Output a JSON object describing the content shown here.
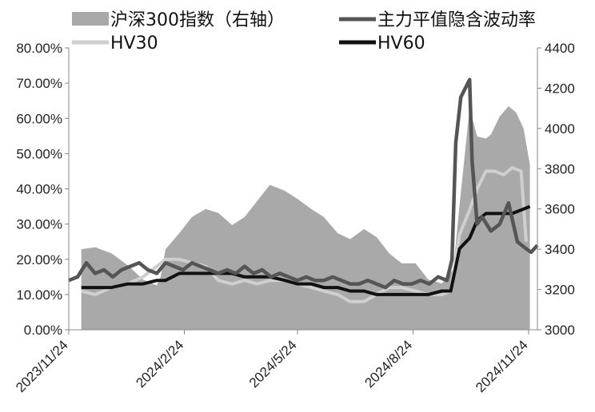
{
  "chart_data": {
    "type": "line",
    "legend": {
      "placement": "top",
      "entries": [
        {
          "label": "沪深300指数（右轴）",
          "kind": "area",
          "color": "#a9a9a9"
        },
        {
          "label": "主力平值隐含波动率",
          "kind": "line",
          "color": "#555555"
        },
        {
          "label": "HV30",
          "kind": "line",
          "color": "#cfcfcf"
        },
        {
          "label": "HV60",
          "kind": "line",
          "color": "#111111"
        }
      ]
    },
    "x_axis": {
      "ticks": [
        "2023/11/24",
        "2024/2/24",
        "2024/5/24",
        "2024/8/24",
        "2024/11/24"
      ],
      "start": "2023/11/24",
      "end": "2024/12/1"
    },
    "y_left": {
      "min": 0,
      "max": 0.8,
      "ticks": [
        "0.00%",
        "10.00%",
        "20.00%",
        "30.00%",
        "40.00%",
        "50.00%",
        "60.00%",
        "70.00%",
        "80.00%"
      ]
    },
    "y_right": {
      "min": 3000,
      "max": 4400,
      "ticks": [
        "3000",
        "3200",
        "3400",
        "3600",
        "3800",
        "4000",
        "4200",
        "4400"
      ]
    },
    "grid": false,
    "series": [
      {
        "name": "沪深300指数（右轴）",
        "axis": "right",
        "style": "area",
        "x": [
          "2023/12/4",
          "2023/12/15",
          "2023/12/28",
          "2024/1/10",
          "2024/1/22",
          "2024/2/2",
          "2024/2/5",
          "2024/2/9",
          "2024/2/20",
          "2024/3/1",
          "2024/3/12",
          "2024/3/22",
          "2024/4/2",
          "2024/4/12",
          "2024/4/22",
          "2024/5/2",
          "2024/5/14",
          "2024/5/24",
          "2024/6/4",
          "2024/6/14",
          "2024/6/25",
          "2024/7/5",
          "2024/7/16",
          "2024/7/26",
          "2024/8/5",
          "2024/8/15",
          "2024/8/26",
          "2024/9/5",
          "2024/9/16",
          "2024/9/25",
          "2024/10/1",
          "2024/10/8",
          "2024/10/14",
          "2024/10/21",
          "2024/10/25",
          "2024/11/1",
          "2024/11/8",
          "2024/11/14",
          "2024/11/20",
          "2024/11/25"
        ],
        "values": [
          3400,
          3410,
          3380,
          3320,
          3250,
          3220,
          3260,
          3400,
          3480,
          3560,
          3600,
          3580,
          3520,
          3560,
          3640,
          3720,
          3690,
          3650,
          3600,
          3560,
          3480,
          3450,
          3500,
          3460,
          3380,
          3330,
          3330,
          3250,
          3230,
          3300,
          3680,
          4100,
          3960,
          3950,
          3970,
          4060,
          4110,
          4080,
          4000,
          3820
        ]
      },
      {
        "name": "主力平值隐含波动率",
        "axis": "left",
        "x": [
          "2023/11/24",
          "2023/12/1",
          "2023/12/8",
          "2023/12/15",
          "2023/12/22",
          "2023/12/29",
          "2024/1/5",
          "2024/1/12",
          "2024/1/19",
          "2024/1/26",
          "2024/2/2",
          "2024/2/9",
          "2024/2/16",
          "2024/2/23",
          "2024/3/1",
          "2024/3/8",
          "2024/3/15",
          "2024/3/22",
          "2024/3/29",
          "2024/4/5",
          "2024/4/12",
          "2024/4/19",
          "2024/4/26",
          "2024/5/3",
          "2024/5/10",
          "2024/5/17",
          "2024/5/24",
          "2024/5/31",
          "2024/6/7",
          "2024/6/14",
          "2024/6/21",
          "2024/6/28",
          "2024/7/5",
          "2024/7/12",
          "2024/7/19",
          "2024/7/26",
          "2024/8/2",
          "2024/8/9",
          "2024/8/16",
          "2024/8/23",
          "2024/8/30",
          "2024/9/6",
          "2024/9/13",
          "2024/9/20",
          "2024/9/24",
          "2024/9/27",
          "2024/10/1",
          "2024/10/8",
          "2024/10/10",
          "2024/10/14",
          "2024/10/18",
          "2024/10/25",
          "2024/11/1",
          "2024/11/8",
          "2024/11/15",
          "2024/11/22",
          "2024/11/26",
          "2024/12/1"
        ],
        "values": [
          0.14,
          0.15,
          0.19,
          0.16,
          0.17,
          0.15,
          0.17,
          0.18,
          0.19,
          0.17,
          0.16,
          0.19,
          0.18,
          0.17,
          0.19,
          0.18,
          0.17,
          0.16,
          0.17,
          0.16,
          0.18,
          0.16,
          0.17,
          0.15,
          0.16,
          0.15,
          0.14,
          0.15,
          0.14,
          0.14,
          0.15,
          0.14,
          0.13,
          0.13,
          0.14,
          0.13,
          0.12,
          0.14,
          0.13,
          0.13,
          0.14,
          0.13,
          0.15,
          0.14,
          0.2,
          0.53,
          0.66,
          0.71,
          0.48,
          0.3,
          0.32,
          0.28,
          0.3,
          0.36,
          0.25,
          0.23,
          0.22,
          0.24
        ]
      },
      {
        "name": "HV30",
        "axis": "left",
        "x": [
          "2023/12/4",
          "2023/12/15",
          "2023/12/28",
          "2024/1/10",
          "2024/1/22",
          "2024/2/2",
          "2024/2/9",
          "2024/2/20",
          "2024/3/1",
          "2024/3/12",
          "2024/3/22",
          "2024/4/2",
          "2024/4/12",
          "2024/4/22",
          "2024/5/2",
          "2024/5/14",
          "2024/5/24",
          "2024/6/4",
          "2024/6/14",
          "2024/6/25",
          "2024/7/5",
          "2024/7/16",
          "2024/7/26",
          "2024/8/5",
          "2024/8/15",
          "2024/8/26",
          "2024/9/5",
          "2024/9/16",
          "2024/9/23",
          "2024/9/30",
          "2024/10/8",
          "2024/10/14",
          "2024/10/21",
          "2024/10/28",
          "2024/11/4",
          "2024/11/11",
          "2024/11/18",
          "2024/11/22"
        ],
        "values": [
          0.11,
          0.1,
          0.12,
          0.13,
          0.15,
          0.18,
          0.2,
          0.2,
          0.19,
          0.18,
          0.14,
          0.13,
          0.14,
          0.13,
          0.14,
          0.14,
          0.13,
          0.12,
          0.11,
          0.1,
          0.08,
          0.08,
          0.1,
          0.12,
          0.12,
          0.11,
          0.1,
          0.1,
          0.11,
          0.27,
          0.34,
          0.4,
          0.45,
          0.45,
          0.44,
          0.46,
          0.45,
          0.25
        ]
      },
      {
        "name": "HV60",
        "axis": "left",
        "x": [
          "2023/12/4",
          "2023/12/15",
          "2023/12/28",
          "2024/1/10",
          "2024/1/22",
          "2024/2/2",
          "2024/2/9",
          "2024/2/20",
          "2024/3/1",
          "2024/3/12",
          "2024/3/22",
          "2024/4/2",
          "2024/4/12",
          "2024/4/22",
          "2024/5/2",
          "2024/5/14",
          "2024/5/24",
          "2024/6/4",
          "2024/6/14",
          "2024/6/25",
          "2024/7/5",
          "2024/7/16",
          "2024/7/26",
          "2024/8/5",
          "2024/8/15",
          "2024/8/26",
          "2024/9/5",
          "2024/9/16",
          "2024/9/23",
          "2024/9/30",
          "2024/10/8",
          "2024/10/14",
          "2024/10/21",
          "2024/10/28",
          "2024/11/4",
          "2024/11/11",
          "2024/11/18",
          "2024/11/25"
        ],
        "values": [
          0.12,
          0.12,
          0.12,
          0.13,
          0.13,
          0.14,
          0.14,
          0.16,
          0.16,
          0.16,
          0.16,
          0.16,
          0.15,
          0.15,
          0.15,
          0.14,
          0.13,
          0.13,
          0.12,
          0.12,
          0.11,
          0.11,
          0.1,
          0.1,
          0.1,
          0.1,
          0.1,
          0.11,
          0.11,
          0.23,
          0.26,
          0.31,
          0.33,
          0.33,
          0.33,
          0.33,
          0.34,
          0.35
        ]
      }
    ]
  }
}
